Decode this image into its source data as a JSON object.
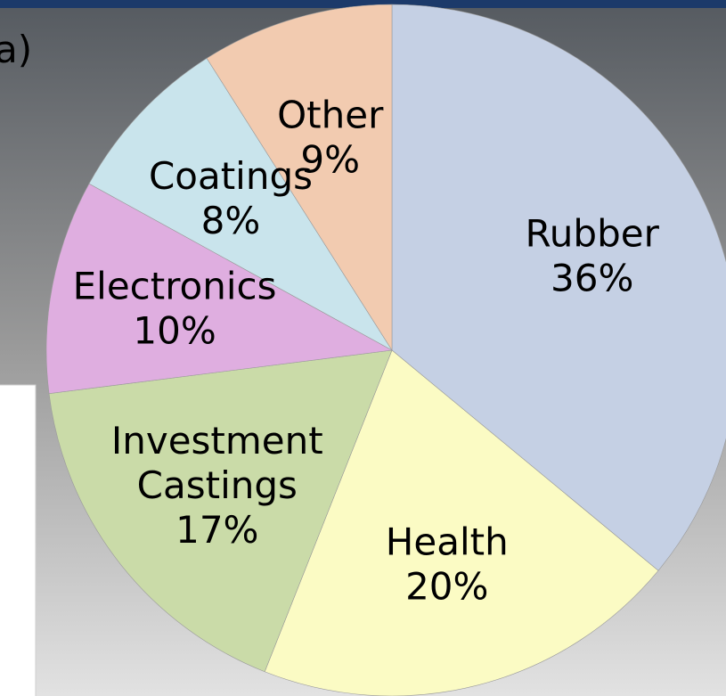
{
  "chart_data": {
    "type": "pie",
    "annotations": [
      "a)"
    ],
    "categories": [
      "Rubber",
      "Health",
      "Investment Castings",
      "Electronics",
      "Coatings",
      "Other"
    ],
    "values": [
      36,
      20,
      17,
      10,
      8,
      9
    ],
    "value_labels": [
      "36%",
      "20%",
      "17%",
      "10%",
      "8%",
      "9%"
    ],
    "colors": [
      "#c5d0e4",
      "#fbfbc4",
      "#cadba8",
      "#dfaee0",
      "#c9e4ec",
      "#f2cbb0"
    ],
    "start_angle": 0,
    "direction": "clockwise"
  }
}
